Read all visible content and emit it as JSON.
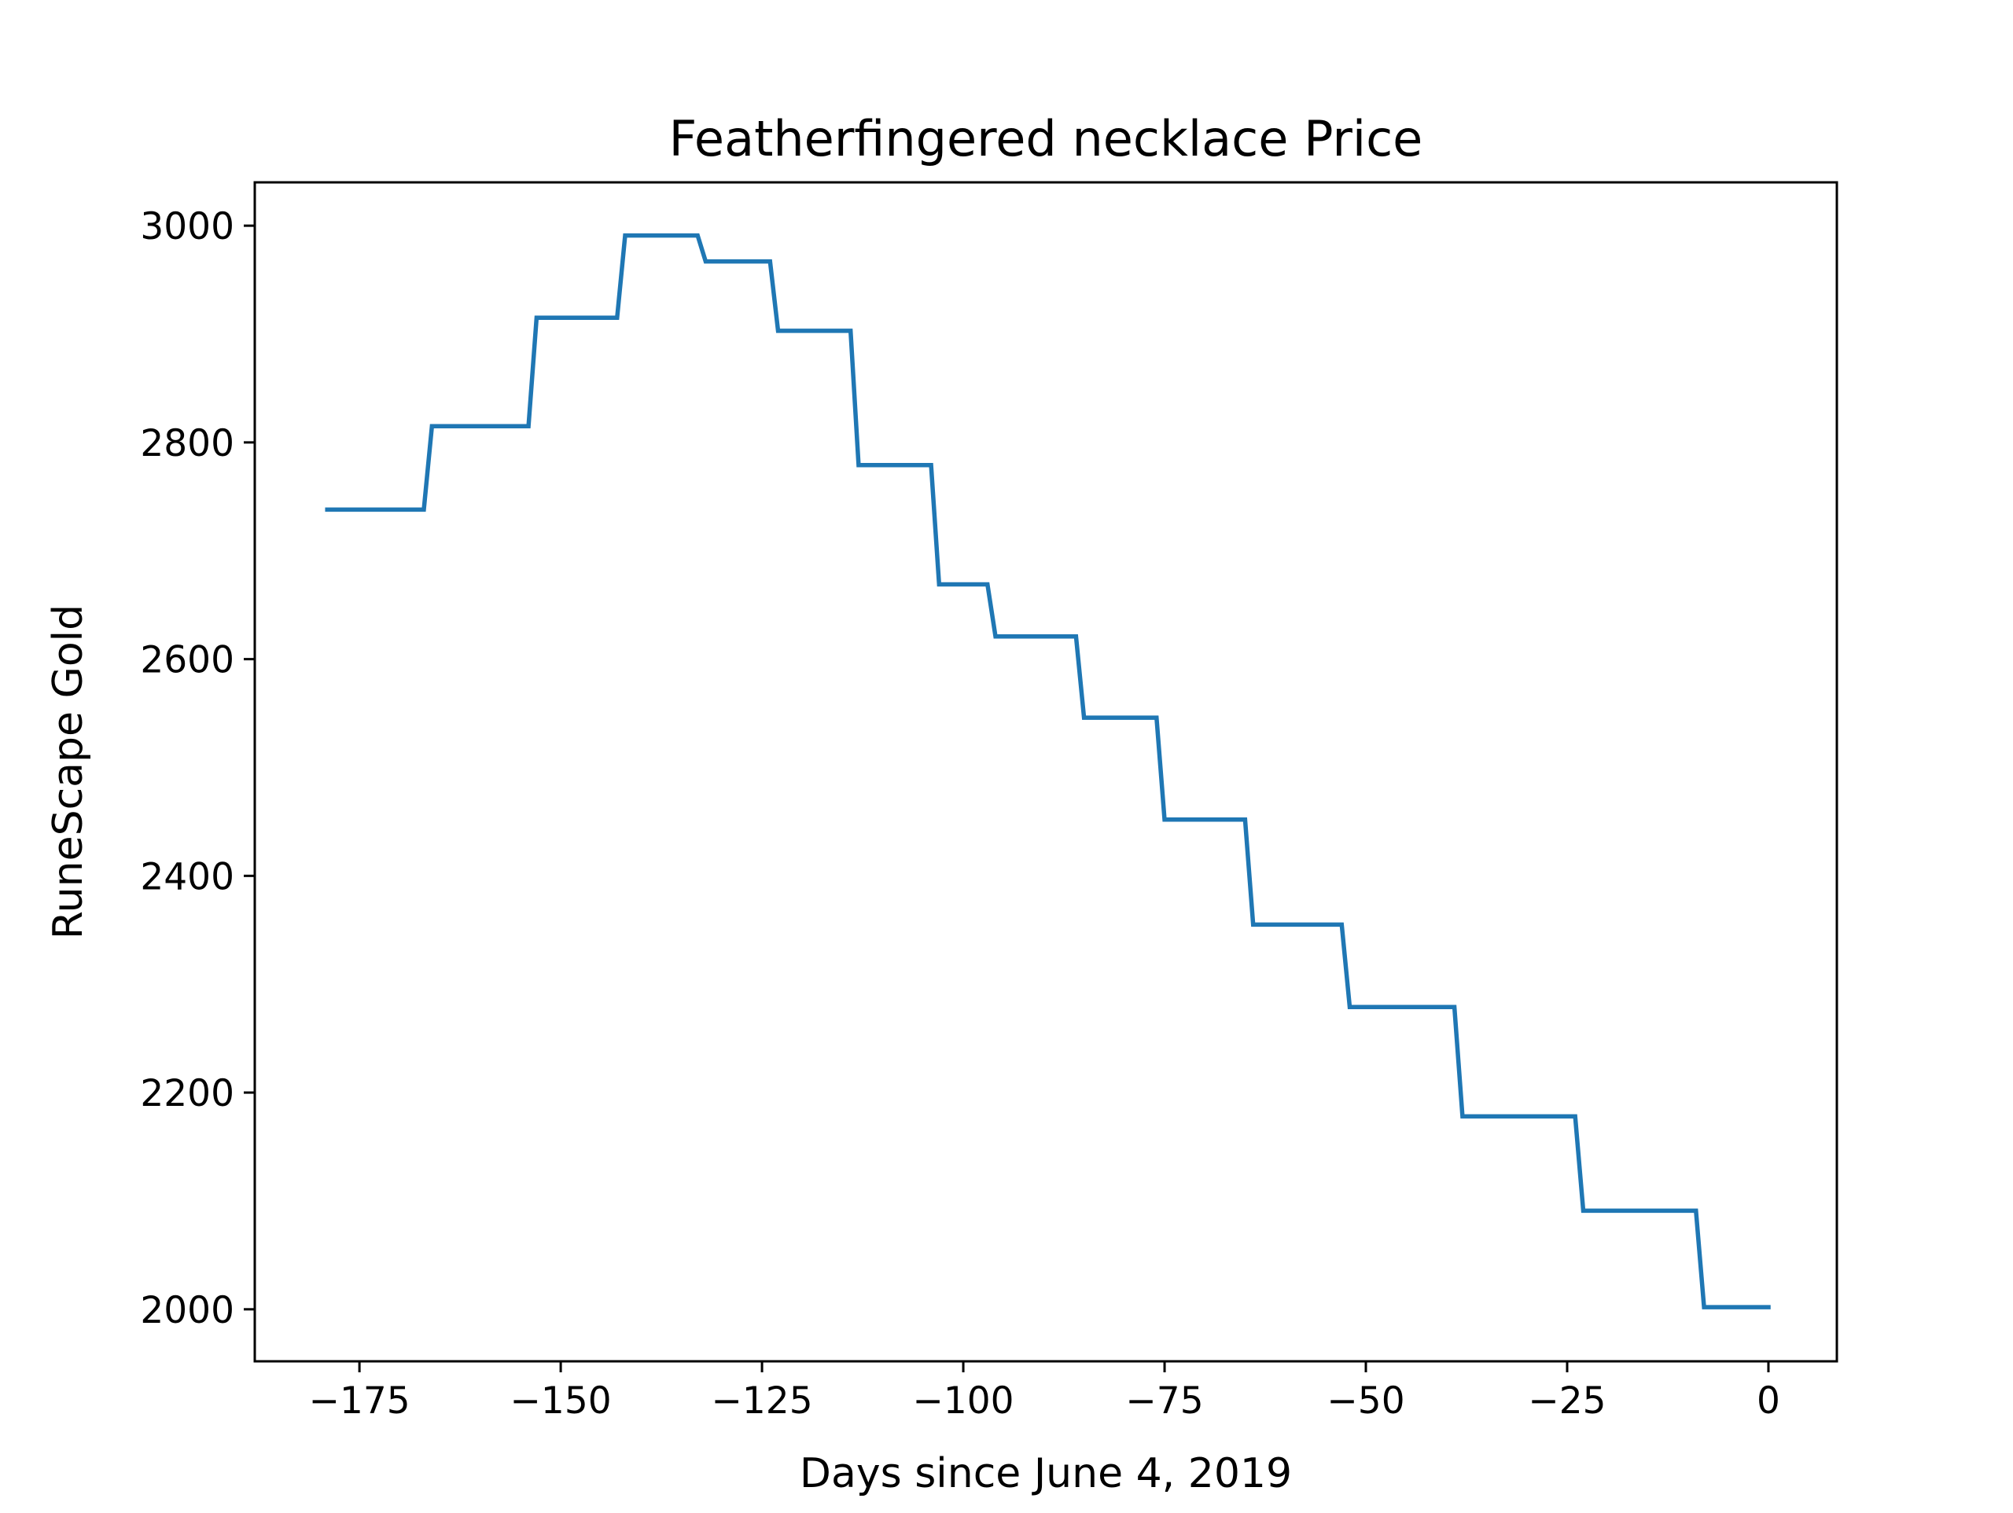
{
  "chart_data": {
    "type": "line",
    "title": "Featherfingered necklace Price",
    "xlabel": "Days since June 4, 2019",
    "ylabel": "RuneScape Gold",
    "xlim": [
      -188,
      8.5
    ],
    "ylim": [
      1952,
      3040
    ],
    "xticks": [
      -175,
      -150,
      -125,
      -100,
      -75,
      -50,
      -25,
      0
    ],
    "xtick_labels": [
      "−175",
      "−150",
      "−125",
      "−100",
      "−75",
      "−50",
      "−25",
      "0"
    ],
    "yticks": [
      2000,
      2200,
      2400,
      2600,
      2800,
      3000
    ],
    "ytick_labels": [
      "2000",
      "2200",
      "2400",
      "2600",
      "2800",
      "3000"
    ],
    "grid": false,
    "line_color": "#1f77b4",
    "series": [
      {
        "x": [
          -179,
          -167,
          -166,
          -154,
          -153,
          -143,
          -142,
          -133,
          -132,
          -124,
          -123,
          -114,
          -113,
          -104,
          -103,
          -97,
          -96,
          -86,
          -85,
          -76,
          -75,
          -65,
          -64,
          -53,
          -52,
          -39,
          -38,
          -24,
          -23,
          -9,
          -8,
          0
        ],
        "y": [
          2738,
          2738,
          2815,
          2815,
          2915,
          2915,
          2991,
          2991,
          2967,
          2967,
          2903,
          2903,
          2779,
          2779,
          2669,
          2669,
          2621,
          2621,
          2546,
          2546,
          2452,
          2452,
          2355,
          2355,
          2279,
          2279,
          2178,
          2178,
          2091,
          2091,
          2002,
          2002
        ]
      }
    ]
  }
}
